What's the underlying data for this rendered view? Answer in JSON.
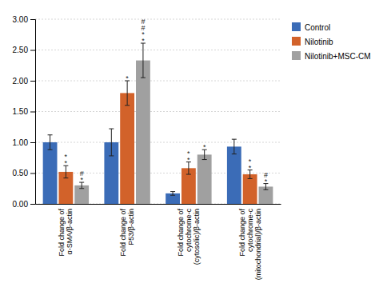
{
  "chart_data": {
    "type": "bar",
    "categories": [
      "Fold change of\nα-SMA/β-actin",
      "Fold change of\nP53/β-actin",
      "Fold change of\ncytochrome-c\n(cytosolic)/β-actin",
      "Fold change of\ncytochrome-c\n(mitochondrial)/β-actin"
    ],
    "series": [
      {
        "name": "Control",
        "color": "#3b6cb7",
        "values": [
          1.0,
          1.0,
          0.17,
          0.93
        ],
        "errors": [
          0.12,
          0.22,
          0.03,
          0.12
        ]
      },
      {
        "name": "Nilotinib",
        "color": "#d2622a",
        "values": [
          0.52,
          1.8,
          0.58,
          0.48
        ],
        "errors": [
          0.1,
          0.2,
          0.1,
          0.07
        ]
      },
      {
        "name": "Nilotinib+MSC-CM",
        "color": "#a0a0a0",
        "values": [
          0.3,
          2.33,
          0.8,
          0.28
        ],
        "errors": [
          0.05,
          0.28,
          0.08,
          0.05
        ]
      }
    ],
    "annotations": [
      {
        "text": "*\n*",
        "category": "Fold change of\nα-SMA/β-actin",
        "series": "Nilotinib"
      },
      {
        "text": "#\n*",
        "category": "Fold change of\nα-SMA/β-actin",
        "series": "Nilotinib+MSC-CM"
      },
      {
        "text": "*",
        "category": "Fold change of\nP53/β-actin",
        "series": "Nilotinib"
      },
      {
        "text": "#\n#\n*\n*",
        "category": "Fold change of\nP53/β-actin",
        "series": "Nilotinib+MSC-CM"
      },
      {
        "text": "*\n*",
        "category": "Fold change of\ncytochrome-c\n(cytosolic)/β-actin",
        "series": "Nilotinib"
      },
      {
        "text": "*",
        "category": "Fold change of\ncytochrome-c\n(cytosolic)/β-actin",
        "series": "Nilotinib+MSC-CM"
      },
      {
        "text": "*\n*",
        "category": "Fold change of\ncytochrome-c\n(mitochondrial)/β-actin",
        "series": "Nilotinib"
      },
      {
        "text": "#\n*",
        "category": "Fold change of\ncytochrome-c\n(mitochondrial)/β-actin",
        "series": "Nilotinib+MSC-CM"
      }
    ],
    "ylim": [
      0.0,
      3.0
    ],
    "yticks": [
      {
        "value": 0.0,
        "label": "0.00"
      },
      {
        "value": 0.5,
        "label": "0.50"
      },
      {
        "value": 1.0,
        "label": "1.00"
      },
      {
        "value": 1.5,
        "label": "1.50"
      },
      {
        "value": 2.0,
        "label": "2.00"
      },
      {
        "value": 2.5,
        "label": "2.50"
      },
      {
        "value": 3.0,
        "label": "3.00"
      }
    ],
    "grid": true,
    "legend": "right"
  }
}
